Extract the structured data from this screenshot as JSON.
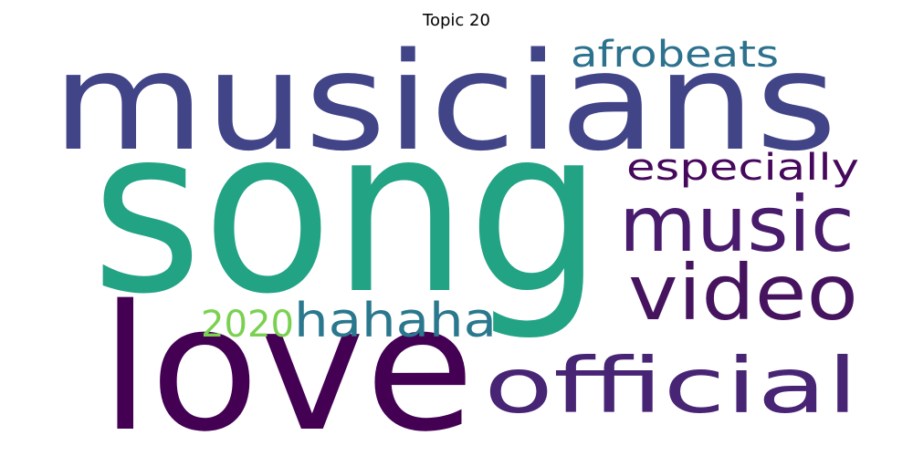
{
  "title": "Topic 20",
  "words": [
    {
      "text": "musicians",
      "color": "#414487"
    },
    {
      "text": "song",
      "color": "#22a384"
    },
    {
      "text": "love",
      "color": "#440154"
    },
    {
      "text": "music",
      "color": "#481b6d"
    },
    {
      "text": "video",
      "color": "#46135f"
    },
    {
      "text": "official",
      "color": "#482475"
    },
    {
      "text": "hahaha",
      "color": "#2a788e"
    },
    {
      "text": "afrobeats",
      "color": "#2c728e"
    },
    {
      "text": "especially",
      "color": "#46085c"
    },
    {
      "text": "2020",
      "color": "#7ad151"
    }
  ]
}
